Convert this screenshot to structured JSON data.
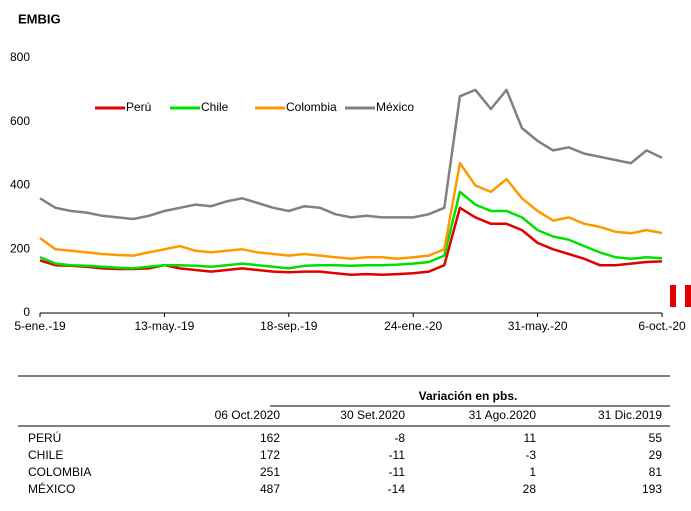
{
  "chart_data": {
    "type": "line",
    "title": "EMBIG",
    "categories": [
      "5-ene.-19",
      null,
      null,
      null,
      null,
      null,
      null,
      null,
      "13-may.-19",
      null,
      null,
      null,
      null,
      null,
      null,
      null,
      "18-sep.-19",
      null,
      null,
      null,
      null,
      null,
      null,
      null,
      "24-ene.-20",
      null,
      null,
      null,
      null,
      null,
      null,
      null,
      "31-may.-20",
      null,
      null,
      null,
      null,
      null,
      null,
      null,
      "6-oct.-20"
    ],
    "series": [
      {
        "name": "Perú",
        "color": "#e00000",
        "values": [
          165,
          150,
          148,
          145,
          140,
          138,
          138,
          140,
          150,
          140,
          135,
          130,
          135,
          140,
          135,
          130,
          128,
          130,
          130,
          125,
          120,
          122,
          120,
          122,
          125,
          130,
          150,
          330,
          300,
          280,
          280,
          260,
          220,
          200,
          185,
          170,
          150,
          150,
          155,
          160,
          162
        ]
      },
      {
        "name": "Chile",
        "color": "#00e000",
        "values": [
          175,
          155,
          150,
          148,
          145,
          142,
          140,
          145,
          150,
          150,
          148,
          145,
          150,
          155,
          150,
          145,
          140,
          148,
          150,
          150,
          148,
          150,
          150,
          152,
          155,
          160,
          180,
          380,
          340,
          320,
          320,
          300,
          260,
          240,
          230,
          210,
          190,
          175,
          170,
          175,
          172
        ]
      },
      {
        "name": "Colombia",
        "color": "#ff9900",
        "values": [
          235,
          200,
          195,
          190,
          185,
          182,
          180,
          190,
          200,
          210,
          195,
          190,
          195,
          200,
          190,
          185,
          180,
          185,
          180,
          175,
          170,
          175,
          175,
          170,
          175,
          180,
          200,
          470,
          400,
          380,
          420,
          360,
          320,
          290,
          300,
          280,
          270,
          255,
          250,
          260,
          251
        ]
      },
      {
        "name": "México",
        "color": "#808080",
        "values": [
          360,
          330,
          320,
          315,
          305,
          300,
          295,
          305,
          320,
          330,
          340,
          335,
          350,
          360,
          345,
          330,
          320,
          335,
          330,
          310,
          300,
          305,
          300,
          300,
          300,
          310,
          330,
          680,
          700,
          640,
          700,
          580,
          540,
          510,
          520,
          500,
          490,
          480,
          470,
          510,
          487
        ]
      }
    ],
    "ylim": [
      0,
      800
    ],
    "yticks": [
      0,
      200,
      400,
      600,
      800
    ],
    "grid": false
  },
  "table": {
    "group_header": "Variación en pbs.",
    "columns": [
      "06 Oct.2020",
      "30 Set.2020",
      "31 Ago.2020",
      "31 Dic.2019"
    ],
    "rows": [
      [
        "PERÚ",
        162,
        -8,
        11,
        55
      ],
      [
        "CHILE",
        172,
        -11,
        -3,
        29
      ],
      [
        "COLOMBIA",
        251,
        -11,
        1,
        81
      ],
      [
        "MÉXICO",
        487,
        -14,
        28,
        193
      ]
    ]
  }
}
